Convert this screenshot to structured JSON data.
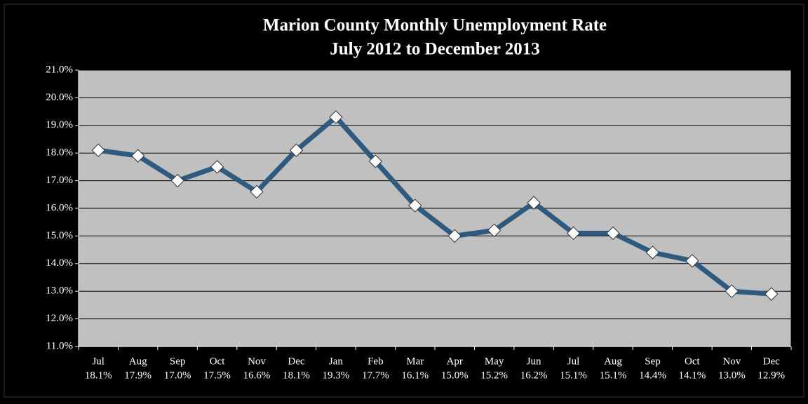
{
  "chart_data": {
    "type": "line",
    "title": "Marion County Monthly Unemployment Rate",
    "subtitle": "July 2012 to December 2013",
    "categories": [
      "Jul",
      "Aug",
      "Sep",
      "Oct",
      "Nov",
      "Dec",
      "Jan",
      "Feb",
      "Mar",
      "Apr",
      "May",
      "Jun",
      "Jul",
      "Aug",
      "Sep",
      "Oct",
      "Nov",
      "Dec"
    ],
    "values": [
      18.1,
      17.9,
      17.0,
      17.5,
      16.6,
      18.1,
      19.3,
      17.7,
      16.1,
      15.0,
      15.2,
      16.2,
      15.1,
      15.1,
      14.4,
      14.1,
      13.0,
      12.9
    ],
    "value_labels": [
      "18.1%",
      "17.9%",
      "17.0%",
      "17.5%",
      "16.6%",
      "18.1%",
      "19.3%",
      "17.7%",
      "16.1%",
      "15.0%",
      "15.2%",
      "16.2%",
      "15.1%",
      "15.1%",
      "14.4%",
      "14.1%",
      "13.0%",
      "12.9%"
    ],
    "color": "#2e5a80",
    "ylim": [
      11,
      21
    ],
    "yticks": [
      {
        "value": 11,
        "label": "11.0%"
      },
      {
        "value": 12,
        "label": "12.0%"
      },
      {
        "value": 13,
        "label": "13.0%"
      },
      {
        "value": 14,
        "label": "14.0%"
      },
      {
        "value": 15,
        "label": "15.0%"
      },
      {
        "value": 16,
        "label": "16.0%"
      },
      {
        "value": 17,
        "label": "17.0%"
      },
      {
        "value": 18,
        "label": "18.0%"
      },
      {
        "value": 19,
        "label": "19.0%"
      },
      {
        "value": 20,
        "label": "20.0%"
      },
      {
        "value": 21,
        "label": "21.0%"
      }
    ],
    "grid": true
  }
}
